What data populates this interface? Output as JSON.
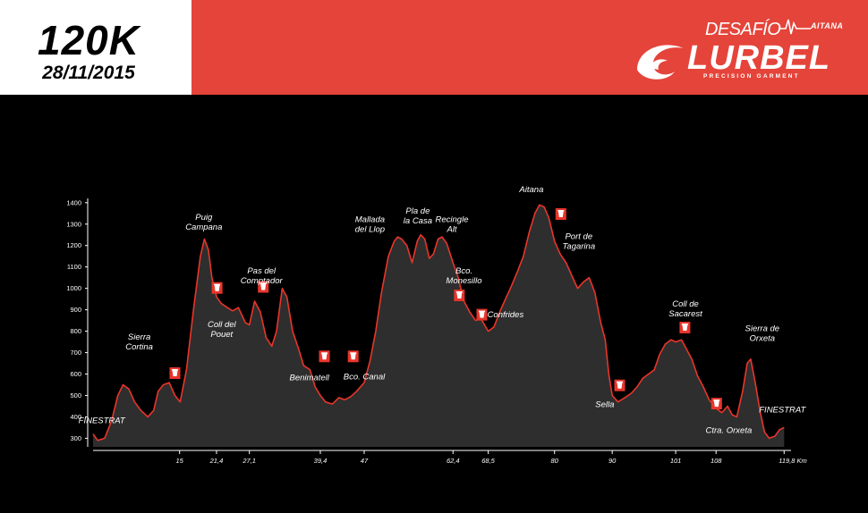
{
  "header": {
    "distance": "120K",
    "date": "28/11/2015"
  },
  "brand": {
    "top": "DESAFÍO",
    "event": "AITANA",
    "name": "LURBEL",
    "tagline": "PRECISION GARMENT"
  },
  "colors": {
    "accent": "#e5443a",
    "profile_fill": "#2e2e2e",
    "profile_line": "#e8352b",
    "background": "#000000"
  },
  "chart_data": {
    "type": "area",
    "ylim": [
      260,
      1420
    ],
    "xlim": [
      0,
      121
    ],
    "y_ticks": [
      300,
      400,
      500,
      600,
      700,
      800,
      900,
      1000,
      1100,
      1200,
      1300,
      1400
    ],
    "x_ticks": [
      {
        "x": 15,
        "label": "15"
      },
      {
        "x": 21.4,
        "label": "21,4"
      },
      {
        "x": 27.1,
        "label": "27,1"
      },
      {
        "x": 39.4,
        "label": "39,4"
      },
      {
        "x": 47,
        "label": "47"
      },
      {
        "x": 62.4,
        "label": "62,4"
      },
      {
        "x": 68.5,
        "label": "68,5"
      },
      {
        "x": 80,
        "label": "80"
      },
      {
        "x": 90,
        "label": "90"
      },
      {
        "x": 101,
        "label": "101"
      },
      {
        "x": 108,
        "label": "108"
      },
      {
        "x": 119.8,
        "label": "119,8 Km"
      }
    ],
    "profile": [
      [
        0,
        320
      ],
      [
        0.8,
        290
      ],
      [
        2,
        300
      ],
      [
        3.2,
        380
      ],
      [
        4.3,
        500
      ],
      [
        5.2,
        550
      ],
      [
        6.2,
        530
      ],
      [
        7.2,
        470
      ],
      [
        8.3,
        430
      ],
      [
        9.5,
        400
      ],
      [
        10.5,
        430
      ],
      [
        11.3,
        520
      ],
      [
        12.2,
        550
      ],
      [
        13.2,
        560
      ],
      [
        14.2,
        500
      ],
      [
        15.1,
        470
      ],
      [
        16.2,
        620
      ],
      [
        17.4,
        900
      ],
      [
        18.6,
        1150
      ],
      [
        19.3,
        1230
      ],
      [
        20,
        1180
      ],
      [
        20.6,
        1050
      ],
      [
        21.4,
        960
      ],
      [
        22.2,
        930
      ],
      [
        23.3,
        910
      ],
      [
        24.2,
        895
      ],
      [
        25.2,
        910
      ],
      [
        26.4,
        840
      ],
      [
        27.1,
        830
      ],
      [
        28,
        940
      ],
      [
        29,
        890
      ],
      [
        30,
        770
      ],
      [
        31,
        730
      ],
      [
        31.8,
        800
      ],
      [
        32.8,
        1000
      ],
      [
        33.6,
        960
      ],
      [
        34.6,
        800
      ],
      [
        35.6,
        720
      ],
      [
        36.5,
        640
      ],
      [
        37.6,
        620
      ],
      [
        38.5,
        540
      ],
      [
        39.4,
        500
      ],
      [
        40.3,
        470
      ],
      [
        41.5,
        460
      ],
      [
        42.6,
        490
      ],
      [
        43.6,
        480
      ],
      [
        44.7,
        495
      ],
      [
        45.7,
        520
      ],
      [
        47,
        560
      ],
      [
        48,
        660
      ],
      [
        49,
        800
      ],
      [
        50,
        980
      ],
      [
        51.2,
        1150
      ],
      [
        52.2,
        1220
      ],
      [
        52.8,
        1240
      ],
      [
        53.5,
        1230
      ],
      [
        54.4,
        1200
      ],
      [
        55.3,
        1120
      ],
      [
        56.2,
        1220
      ],
      [
        56.8,
        1250
      ],
      [
        57.5,
        1230
      ],
      [
        58.3,
        1140
      ],
      [
        59,
        1160
      ],
      [
        59.8,
        1230
      ],
      [
        60.5,
        1240
      ],
      [
        61.3,
        1210
      ],
      [
        62.4,
        1120
      ],
      [
        63.2,
        1060
      ],
      [
        64.3,
        940
      ],
      [
        65.3,
        890
      ],
      [
        66.3,
        850
      ],
      [
        67.2,
        860
      ],
      [
        68.5,
        800
      ],
      [
        69.5,
        820
      ],
      [
        70.5,
        890
      ],
      [
        71.5,
        950
      ],
      [
        72.5,
        1010
      ],
      [
        73.6,
        1080
      ],
      [
        74.6,
        1150
      ],
      [
        75.6,
        1260
      ],
      [
        76.6,
        1350
      ],
      [
        77.4,
        1390
      ],
      [
        78.2,
        1380
      ],
      [
        79,
        1330
      ],
      [
        80,
        1220
      ],
      [
        81,
        1160
      ],
      [
        82,
        1120
      ],
      [
        83,
        1060
      ],
      [
        84,
        1000
      ],
      [
        85,
        1030
      ],
      [
        86,
        1050
      ],
      [
        87,
        980
      ],
      [
        88,
        840
      ],
      [
        88.8,
        760
      ],
      [
        89.4,
        600
      ],
      [
        90,
        500
      ],
      [
        91,
        470
      ],
      [
        92.2,
        490
      ],
      [
        93.3,
        510
      ],
      [
        94.3,
        540
      ],
      [
        95.3,
        580
      ],
      [
        96.3,
        600
      ],
      [
        97.3,
        620
      ],
      [
        98.2,
        690
      ],
      [
        99.2,
        740
      ],
      [
        100.2,
        760
      ],
      [
        101,
        750
      ],
      [
        102,
        760
      ],
      [
        102.8,
        720
      ],
      [
        103.8,
        670
      ],
      [
        104.8,
        590
      ],
      [
        105.8,
        540
      ],
      [
        106.8,
        480
      ],
      [
        108,
        440
      ],
      [
        109,
        420
      ],
      [
        110,
        450
      ],
      [
        110.8,
        410
      ],
      [
        111.6,
        400
      ],
      [
        112.6,
        520
      ],
      [
        113.4,
        650
      ],
      [
        114,
        670
      ],
      [
        114.8,
        560
      ],
      [
        115.6,
        430
      ],
      [
        116.4,
        330
      ],
      [
        117.2,
        300
      ],
      [
        118.2,
        310
      ],
      [
        119,
        340
      ],
      [
        119.8,
        350
      ]
    ],
    "annotations": [
      {
        "x": 1.5,
        "y": 370,
        "text": [
          "FINESTRAT"
        ]
      },
      {
        "x": 8,
        "y": 760,
        "text": [
          "Sierra",
          "Cortina"
        ]
      },
      {
        "x": 19.2,
        "y": 1320,
        "text": [
          "Puig",
          "Campana"
        ]
      },
      {
        "x": 22.3,
        "y": 820,
        "text": [
          "Coll del",
          "Pouet"
        ]
      },
      {
        "x": 29.2,
        "y": 1070,
        "text": [
          "Pas del",
          "Comptador"
        ]
      },
      {
        "x": 37.5,
        "y": 570,
        "text": [
          "Benimatell"
        ]
      },
      {
        "x": 47,
        "y": 575,
        "text": [
          "Bco. Canal"
        ]
      },
      {
        "x": 48,
        "y": 1310,
        "text": [
          "Mallada",
          "del Llop"
        ]
      },
      {
        "x": 56.3,
        "y": 1350,
        "text": [
          "Pla de",
          "la Casa"
        ]
      },
      {
        "x": 62.2,
        "y": 1310,
        "text": [
          "Recingle",
          "Alt"
        ]
      },
      {
        "x": 64.3,
        "y": 1070,
        "text": [
          "Bco.",
          "Monesillo"
        ]
      },
      {
        "x": 71.5,
        "y": 865,
        "text": [
          "Confrides"
        ]
      },
      {
        "x": 76,
        "y": 1450,
        "text": [
          "Aitana"
        ]
      },
      {
        "x": 84.2,
        "y": 1230,
        "text": [
          "Port de",
          "Tagarina"
        ]
      },
      {
        "x": 88.7,
        "y": 445,
        "text": [
          "Sella"
        ]
      },
      {
        "x": 102.7,
        "y": 915,
        "text": [
          "Coll de",
          "Sacarest"
        ]
      },
      {
        "x": 110.2,
        "y": 325,
        "text": [
          "Ctra. Orxeta"
        ]
      },
      {
        "x": 116,
        "y": 800,
        "text": [
          "Sierra de",
          "Orxeta"
        ]
      },
      {
        "x": 119.5,
        "y": 420,
        "text": [
          "FINESTRAT"
        ]
      }
    ],
    "aid_stations": [
      {
        "x": 14.2,
        "y": 602
      },
      {
        "x": 21.5,
        "y": 1000
      },
      {
        "x": 29.5,
        "y": 1005
      },
      {
        "x": 40.1,
        "y": 680
      },
      {
        "x": 45.1,
        "y": 680
      },
      {
        "x": 63.5,
        "y": 965
      },
      {
        "x": 67.4,
        "y": 875
      },
      {
        "x": 81.1,
        "y": 1345
      },
      {
        "x": 91.3,
        "y": 545
      },
      {
        "x": 102.6,
        "y": 815
      },
      {
        "x": 108.1,
        "y": 460
      }
    ]
  }
}
